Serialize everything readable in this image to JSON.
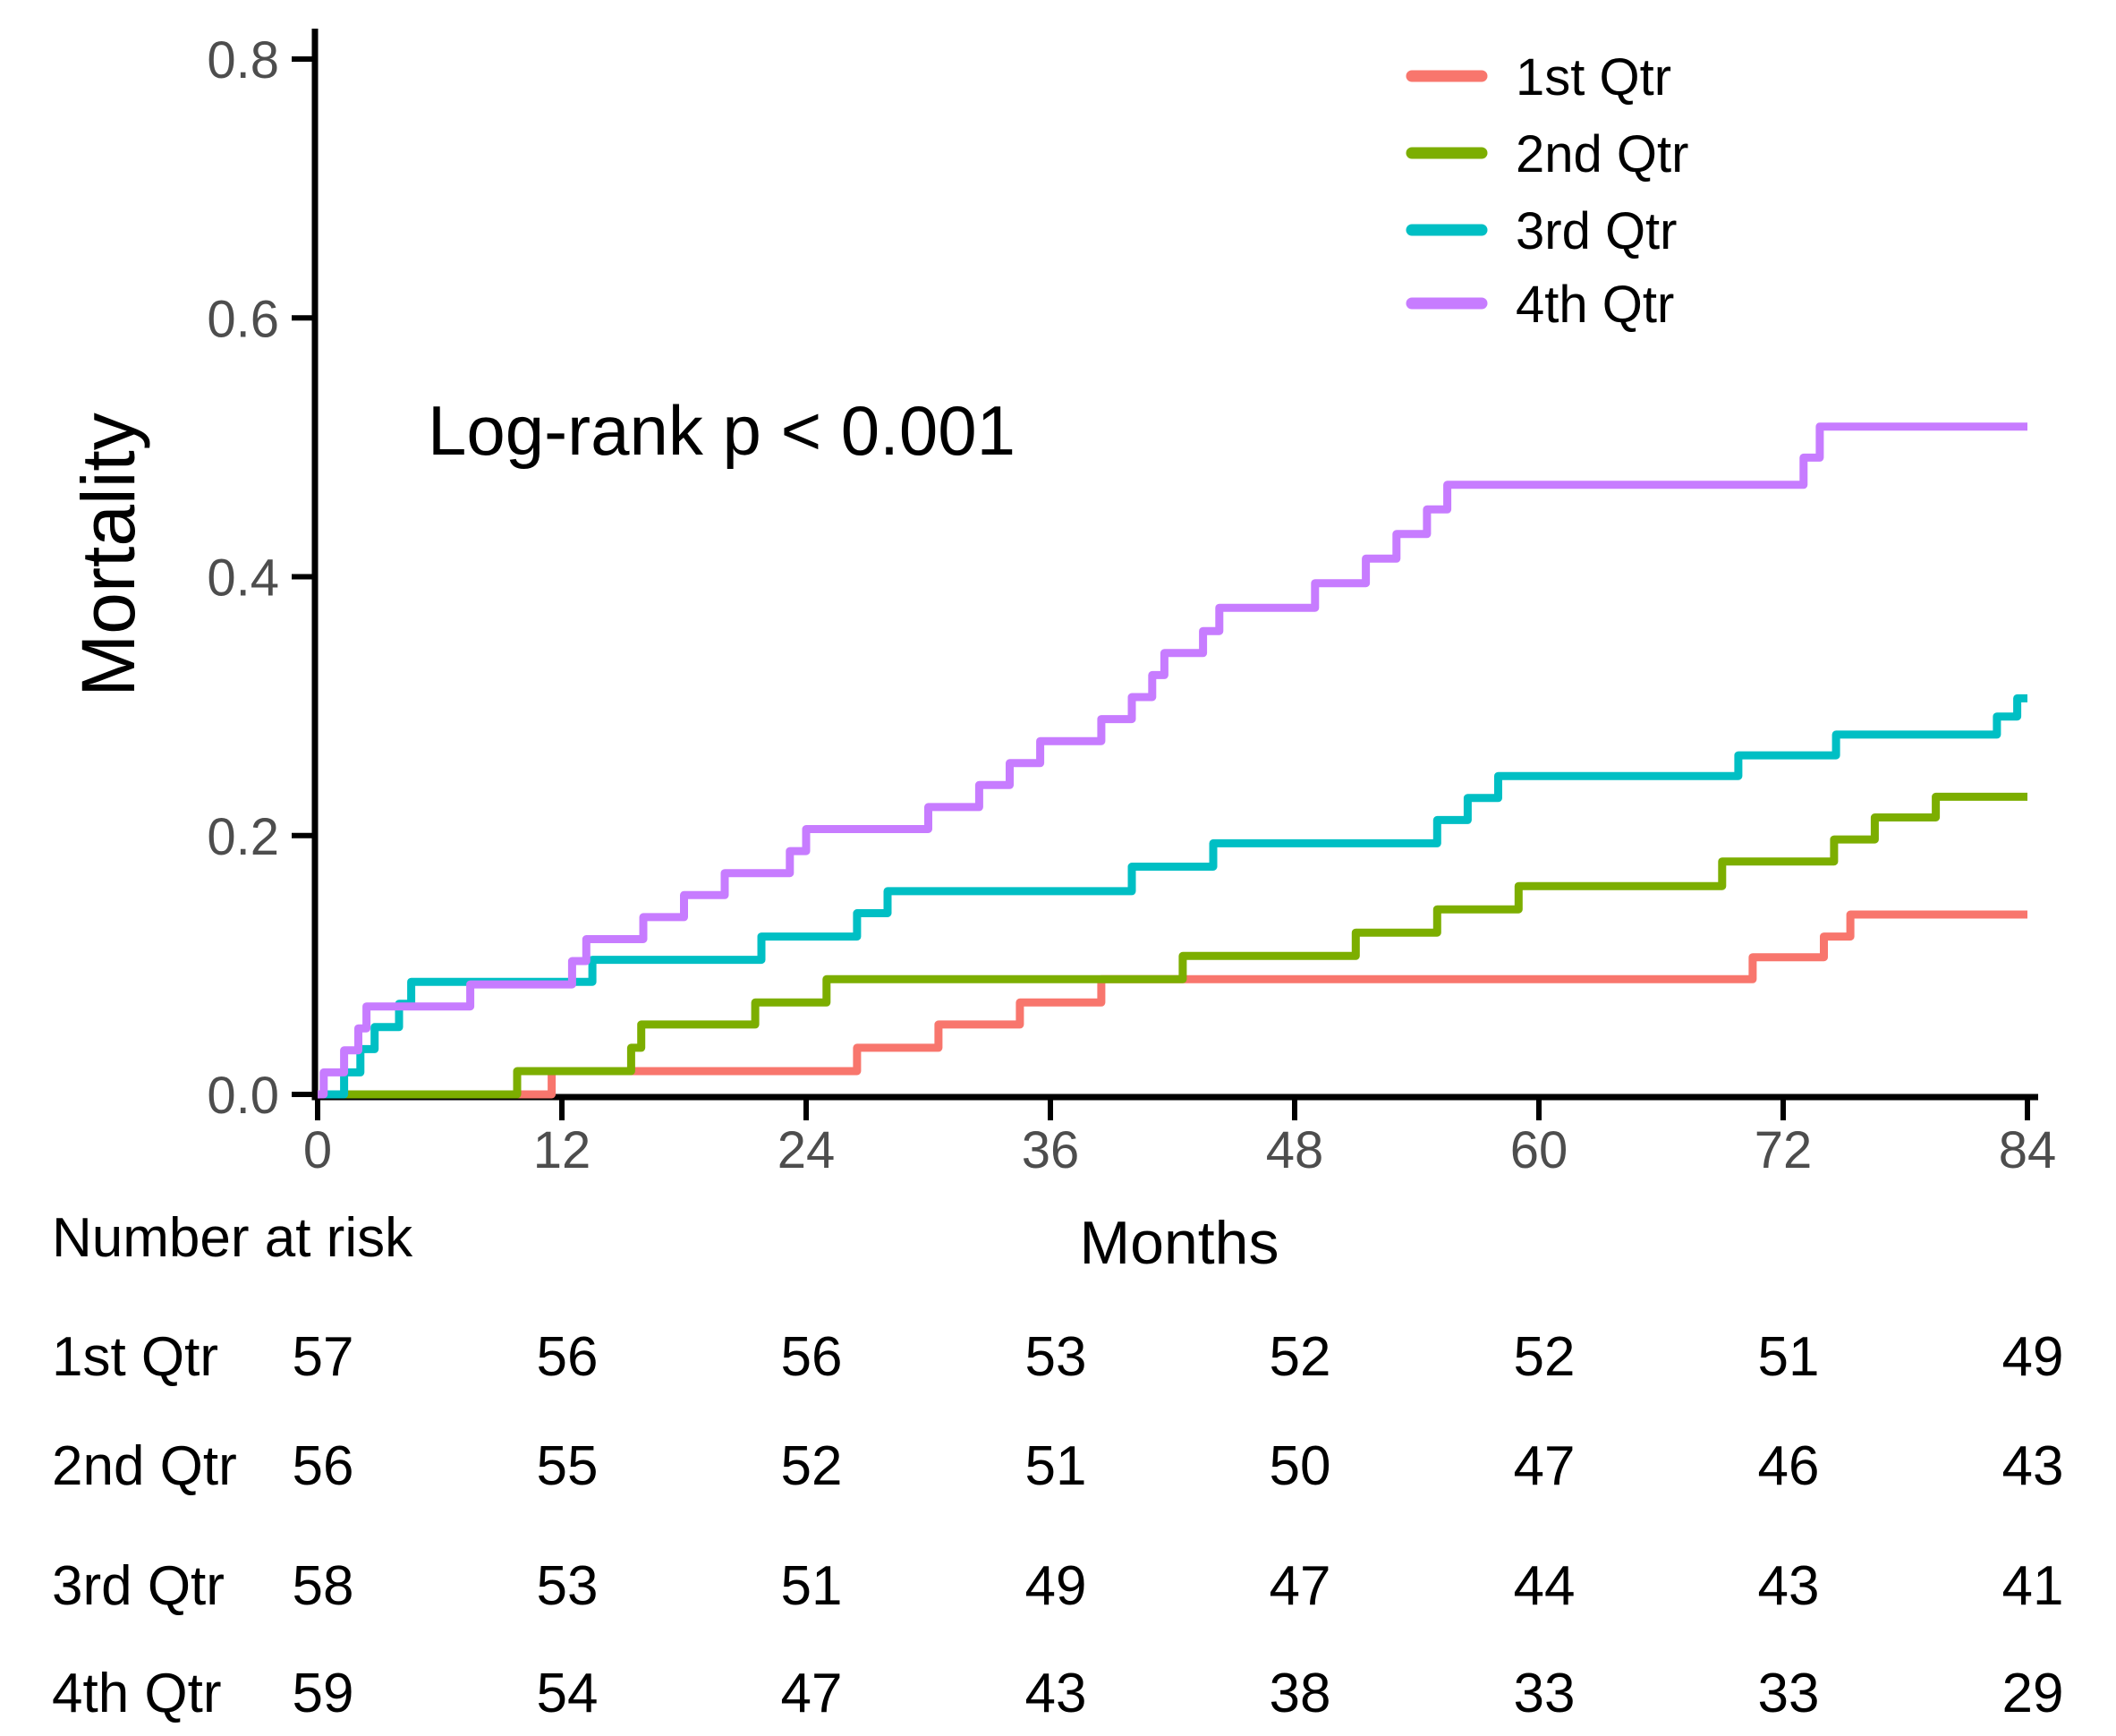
{
  "chart_data": {
    "type": "line",
    "subtype": "kaplan-meier-cumulative-incidence-step",
    "title": "",
    "xlabel": "Months",
    "ylabel": "Mortality",
    "annotation": "Log-rank p < 0.001",
    "xlim": [
      0,
      84
    ],
    "ylim": [
      0,
      0.8
    ],
    "xticks": [
      0,
      12,
      24,
      36,
      48,
      60,
      72,
      84
    ],
    "ytick_labels": [
      "0.0",
      "0.2",
      "0.4",
      "0.6",
      "0.8"
    ],
    "ytick_values": [
      0.0,
      0.2,
      0.4,
      0.6,
      0.8
    ],
    "grid": false,
    "legend_position": "top-right",
    "axis_color": "#000000",
    "tick_label_color": "#4d4d4d",
    "text_color": "#000000",
    "series": [
      {
        "name": "1st Qtr",
        "color": "#F8766D",
        "start": [
          0,
          0
        ],
        "steps": [
          [
            11.5,
            0.018
          ],
          [
            26.5,
            0.036
          ],
          [
            30.5,
            0.054
          ],
          [
            34.5,
            0.071
          ],
          [
            38.5,
            0.089
          ],
          [
            70.5,
            0.106
          ],
          [
            74,
            0.122
          ],
          [
            75.3,
            0.139
          ]
        ]
      },
      {
        "name": "2nd Qtr",
        "color": "#7CAE00",
        "start": [
          0,
          0
        ],
        "steps": [
          [
            9.8,
            0.018
          ],
          [
            15.4,
            0.036
          ],
          [
            15.9,
            0.054
          ],
          [
            21.5,
            0.071
          ],
          [
            25,
            0.089
          ],
          [
            42.5,
            0.107
          ],
          [
            51,
            0.125
          ],
          [
            55,
            0.143
          ],
          [
            59,
            0.161
          ],
          [
            69,
            0.18
          ],
          [
            74.5,
            0.197
          ],
          [
            76.5,
            0.214
          ],
          [
            79.5,
            0.23
          ]
        ]
      },
      {
        "name": "3rd Qtr",
        "color": "#00BFC4",
        "start": [
          0,
          0
        ],
        "steps": [
          [
            1.3,
            0.017
          ],
          [
            2.1,
            0.035
          ],
          [
            2.8,
            0.052
          ],
          [
            4,
            0.07
          ],
          [
            4.6,
            0.087
          ],
          [
            13.5,
            0.104
          ],
          [
            21.8,
            0.122
          ],
          [
            26.5,
            0.14
          ],
          [
            28,
            0.157
          ],
          [
            40,
            0.176
          ],
          [
            44,
            0.194
          ],
          [
            55,
            0.212
          ],
          [
            56.5,
            0.229
          ],
          [
            58,
            0.246
          ],
          [
            69.8,
            0.262
          ],
          [
            74.6,
            0.278
          ],
          [
            82.5,
            0.292
          ],
          [
            83.5,
            0.306
          ]
        ]
      },
      {
        "name": "4th Qtr",
        "color": "#C77CFF",
        "start": [
          0,
          0
        ],
        "steps": [
          [
            0.3,
            0.017
          ],
          [
            1.3,
            0.034
          ],
          [
            2.0,
            0.051
          ],
          [
            2.4,
            0.068
          ],
          [
            7.5,
            0.085
          ],
          [
            12.5,
            0.103
          ],
          [
            13.2,
            0.12
          ],
          [
            16,
            0.137
          ],
          [
            18,
            0.154
          ],
          [
            20,
            0.171
          ],
          [
            23.2,
            0.188
          ],
          [
            24,
            0.205
          ],
          [
            30,
            0.222
          ],
          [
            32.5,
            0.239
          ],
          [
            34,
            0.256
          ],
          [
            35.5,
            0.273
          ],
          [
            38.5,
            0.29
          ],
          [
            40,
            0.307
          ],
          [
            41,
            0.324
          ],
          [
            41.6,
            0.341
          ],
          [
            43.5,
            0.358
          ],
          [
            44.3,
            0.376
          ],
          [
            49,
            0.395
          ],
          [
            51.5,
            0.414
          ],
          [
            53,
            0.433
          ],
          [
            54.5,
            0.452
          ],
          [
            55.5,
            0.471
          ],
          [
            73,
            0.492
          ],
          [
            73.8,
            0.516
          ]
        ]
      }
    ],
    "risk_table": {
      "title": "Number at risk",
      "months": [
        0,
        12,
        24,
        36,
        48,
        60,
        72,
        84
      ],
      "rows": [
        {
          "label": "1st Qtr",
          "values": [
            57,
            56,
            56,
            53,
            52,
            52,
            51,
            49
          ]
        },
        {
          "label": "2nd Qtr",
          "values": [
            56,
            55,
            52,
            51,
            50,
            47,
            46,
            43
          ]
        },
        {
          "label": "3rd Qtr",
          "values": [
            58,
            53,
            51,
            49,
            47,
            44,
            43,
            41
          ]
        },
        {
          "label": "4th Qtr",
          "values": [
            59,
            54,
            47,
            43,
            38,
            33,
            33,
            29
          ]
        }
      ]
    }
  }
}
